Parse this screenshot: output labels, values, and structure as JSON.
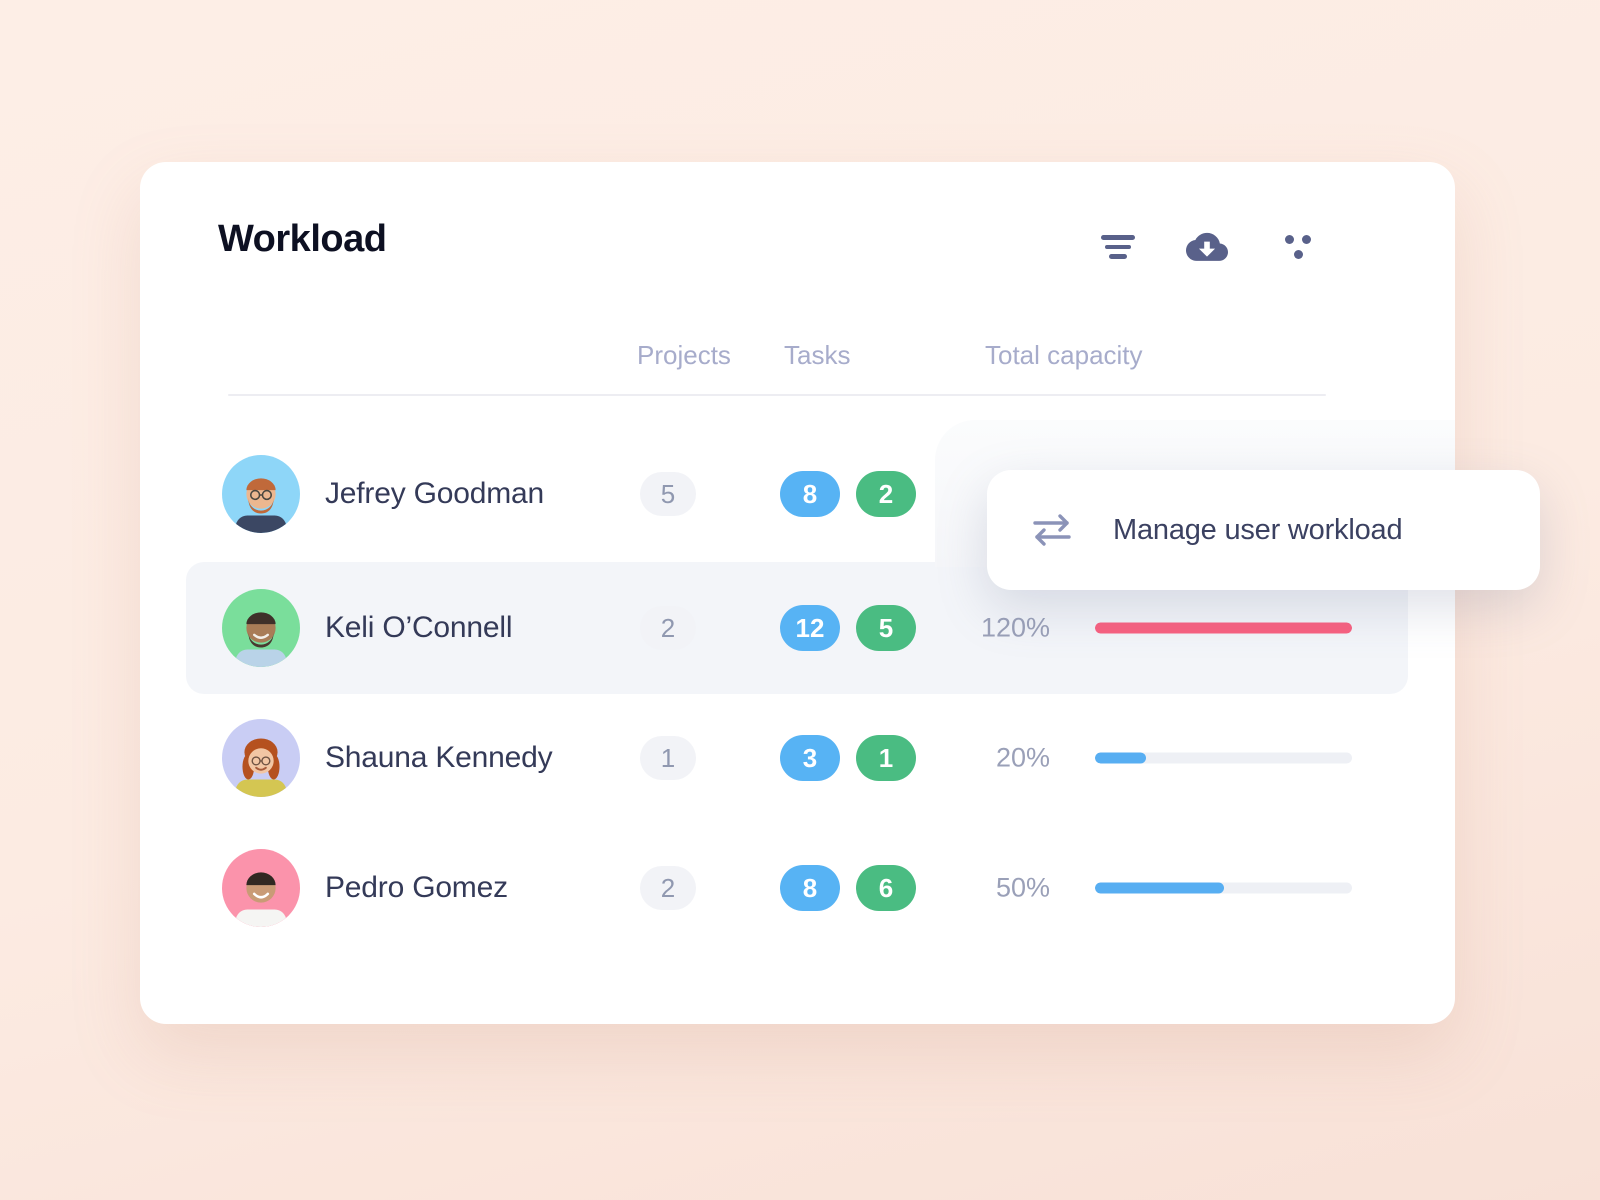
{
  "card": {
    "title": "Workload",
    "toolbar": [
      {
        "icon": "filter-icon"
      },
      {
        "icon": "cloud-download-icon"
      },
      {
        "icon": "more-options-icon"
      }
    ],
    "table": {
      "columns": [
        "Projects",
        "Tasks",
        "Total capacity"
      ],
      "rows": [
        {
          "name": "Jefrey Goodman",
          "projects": "5",
          "tasks_active": "8",
          "tasks_done": "2",
          "capacity_label": "",
          "capacity_pct": null,
          "avatar_bg": "#8ed6f8",
          "highlighted": false
        },
        {
          "name": "Keli O’Connell",
          "projects": "2",
          "tasks_active": "12",
          "tasks_done": "5",
          "capacity_label": "120%",
          "capacity_pct": 120,
          "avatar_bg": "#7ade9b",
          "highlighted": true
        },
        {
          "name": "Shauna Kennedy",
          "projects": "1",
          "tasks_active": "3",
          "tasks_done": "1",
          "capacity_label": "20%",
          "capacity_pct": 20,
          "avatar_bg": "#c9cdf4",
          "highlighted": false
        },
        {
          "name": "Pedro Gomez",
          "projects": "2",
          "tasks_active": "8",
          "tasks_done": "6",
          "capacity_label": "50%",
          "capacity_pct": 50,
          "avatar_bg": "#fb93ab",
          "highlighted": false
        }
      ]
    }
  },
  "tooltip": {
    "icon": "swap-arrows-icon",
    "label": "Manage user workload"
  },
  "colors": {
    "background": "#fcebe2",
    "card": "#ffffff",
    "task_blue": "#57b3f4",
    "task_green": "#4abc82",
    "capacity_normal": "#57aef2",
    "capacity_over": "#f9607f",
    "track": "#eef0f5",
    "header_text": "#a7accb",
    "name_text": "#343a58",
    "muted_text": "#9aa0b8",
    "icon": "#59618a"
  }
}
